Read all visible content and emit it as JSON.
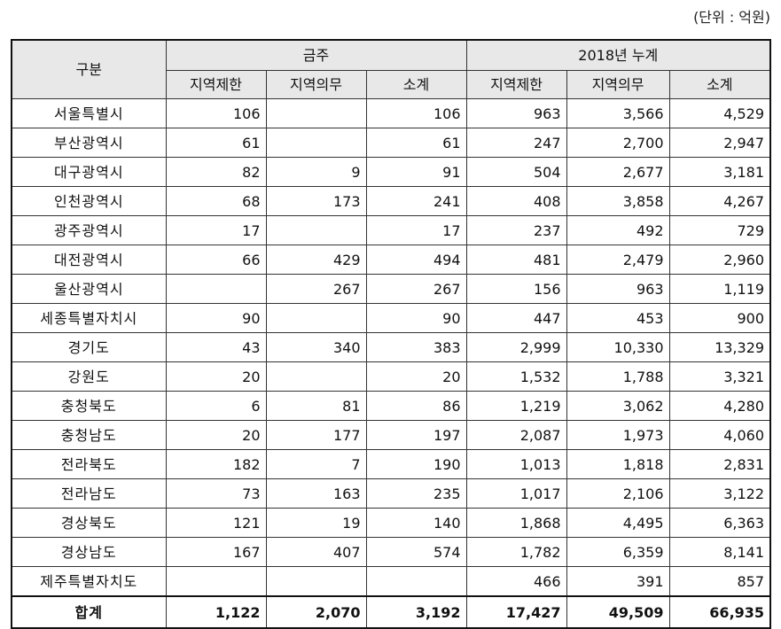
{
  "unit_label": "(단위 : 억원)",
  "header": {
    "region": "구분",
    "group_current": "금주",
    "group_cumulative": "2018년  누계",
    "cols": [
      "지역제한",
      "지역의무",
      "소계",
      "지역제한",
      "지역의무",
      "소계"
    ]
  },
  "rows": [
    {
      "region": "서울특별시",
      "v": [
        "106",
        "",
        "106",
        "963",
        "3,566",
        "4,529"
      ]
    },
    {
      "region": "부산광역시",
      "v": [
        "61",
        "",
        "61",
        "247",
        "2,700",
        "2,947"
      ]
    },
    {
      "region": "대구광역시",
      "v": [
        "82",
        "9",
        "91",
        "504",
        "2,677",
        "3,181"
      ]
    },
    {
      "region": "인천광역시",
      "v": [
        "68",
        "173",
        "241",
        "408",
        "3,858",
        "4,267"
      ]
    },
    {
      "region": "광주광역시",
      "v": [
        "17",
        "",
        "17",
        "237",
        "492",
        "729"
      ]
    },
    {
      "region": "대전광역시",
      "v": [
        "66",
        "429",
        "494",
        "481",
        "2,479",
        "2,960"
      ]
    },
    {
      "region": "울산광역시",
      "v": [
        "",
        "267",
        "267",
        "156",
        "963",
        "1,119"
      ]
    },
    {
      "region": "세종특별자치시",
      "v": [
        "90",
        "",
        "90",
        "447",
        "453",
        "900"
      ]
    },
    {
      "region": "경기도",
      "v": [
        "43",
        "340",
        "383",
        "2,999",
        "10,330",
        "13,329"
      ]
    },
    {
      "region": "강원도",
      "v": [
        "20",
        "",
        "20",
        "1,532",
        "1,788",
        "3,321"
      ]
    },
    {
      "region": "충청북도",
      "v": [
        "6",
        "81",
        "86",
        "1,219",
        "3,062",
        "4,280"
      ]
    },
    {
      "region": "충청남도",
      "v": [
        "20",
        "177",
        "197",
        "2,087",
        "1,973",
        "4,060"
      ]
    },
    {
      "region": "전라북도",
      "v": [
        "182",
        "7",
        "190",
        "1,013",
        "1,818",
        "2,831"
      ]
    },
    {
      "region": "전라남도",
      "v": [
        "73",
        "163",
        "235",
        "1,017",
        "2,106",
        "3,122"
      ]
    },
    {
      "region": "경상북도",
      "v": [
        "121",
        "19",
        "140",
        "1,868",
        "4,495",
        "6,363"
      ]
    },
    {
      "region": "경상남도",
      "v": [
        "167",
        "407",
        "574",
        "1,782",
        "6,359",
        "8,141"
      ]
    },
    {
      "region": "제주특별자치도",
      "v": [
        "",
        "",
        "",
        "466",
        "391",
        "857"
      ]
    }
  ],
  "total": {
    "region": "합계",
    "v": [
      "1,122",
      "2,070",
      "3,192",
      "17,427",
      "49,509",
      "66,935"
    ]
  }
}
